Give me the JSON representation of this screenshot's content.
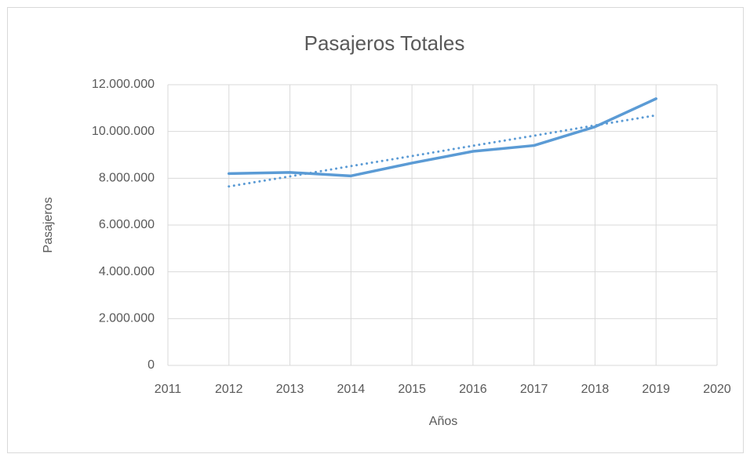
{
  "chart_data": {
    "type": "line",
    "title": "Pasajeros Totales",
    "xlabel": "Años",
    "ylabel": "Pasajeros",
    "x": [
      2012,
      2013,
      2014,
      2015,
      2016,
      2017,
      2018,
      2019
    ],
    "series": [
      {
        "color": "#5b9bd5",
        "style": "solid",
        "values": [
          8200000,
          8250000,
          8100000,
          8650000,
          9150000,
          9400000,
          10200000,
          11400000
        ]
      },
      {
        "color": "#5b9bd5",
        "style": "dotted",
        "values": [
          7650000,
          8080000,
          8520000,
          8950000,
          9390000,
          9820000,
          10260000,
          10690000
        ]
      }
    ],
    "xlim": [
      2011,
      2020
    ],
    "xticks": [
      2011,
      2012,
      2013,
      2014,
      2015,
      2016,
      2017,
      2018,
      2019,
      2020
    ],
    "ylim": [
      0,
      12000000
    ],
    "yticks": [
      0,
      {
        "value": 2000000,
        "label": "2.000.000"
      },
      {
        "value": 4000000,
        "label": "4.000.000"
      },
      {
        "value": 6000000,
        "label": "6.000.000"
      },
      {
        "value": 8000000,
        "label": "8.000.000"
      },
      {
        "value": 10000000,
        "label": "10.000.000"
      },
      {
        "value": 12000000,
        "label": "12.000.000"
      }
    ],
    "grid": true
  }
}
